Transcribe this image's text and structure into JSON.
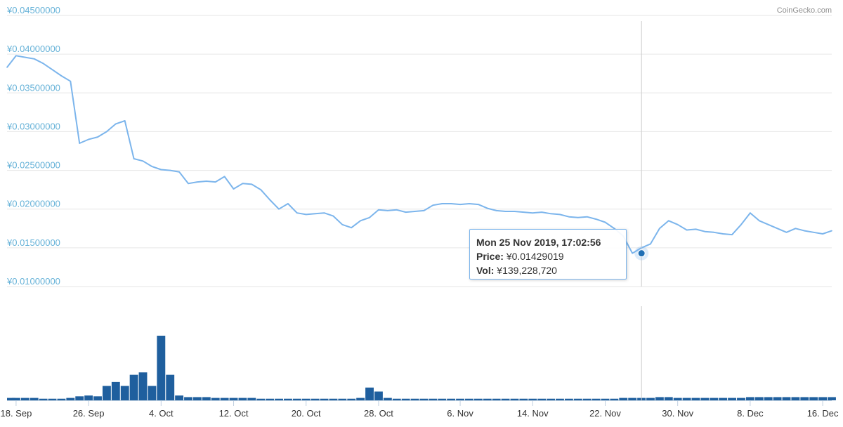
{
  "credit": "CoinGecko.com",
  "colors": {
    "price_line": "#7cb5ec",
    "volume_bars": "#1f5f9e",
    "y_tick_text": "#66b2d8",
    "x_tick_text": "#333333",
    "grid": "#e6e6e6",
    "crosshair": "#cccccc",
    "tooltip_border": "#7cb5ec",
    "marker": "#1f6fb5"
  },
  "tooltip": {
    "date": "Mon 25 Nov 2019, 17:02:56",
    "price_label": "Price:",
    "price_value": "¥0.01429019",
    "vol_label": "Vol:",
    "vol_value": "¥139,228,720"
  },
  "chart_data": {
    "type": "line",
    "title": "",
    "xlabel": "",
    "ylabel": "",
    "grid": true,
    "legend": "none",
    "ylim": [
      0.01,
      0.045
    ],
    "y_tick_labels": [
      "¥0.04500000",
      "¥0.04000000",
      "¥0.03500000",
      "¥0.03000000",
      "¥0.02500000",
      "¥0.02000000",
      "¥0.01500000",
      "¥0.01000000"
    ],
    "y_tick_values": [
      0.045,
      0.04,
      0.035,
      0.03,
      0.025,
      0.02,
      0.015,
      0.01
    ],
    "x_tick_labels": [
      "18. Sep",
      "26. Sep",
      "4. Oct",
      "12. Oct",
      "20. Oct",
      "28. Oct",
      "6. Nov",
      "14. Nov",
      "22. Nov",
      "30. Nov",
      "8. Dec",
      "16. Dec"
    ],
    "x_tick_dates": [
      "2019-09-18",
      "2019-09-26",
      "2019-10-04",
      "2019-10-12",
      "2019-10-20",
      "2019-10-28",
      "2019-11-06",
      "2019-11-14",
      "2019-11-22",
      "2019-11-30",
      "2019-12-08",
      "2019-12-16"
    ],
    "x_range": [
      "2019-09-17",
      "2019-12-17"
    ],
    "highlight": {
      "date": "2019-11-25",
      "price": 0.01429019
    },
    "price_series": {
      "dates": [
        "2019-09-17",
        "2019-09-18",
        "2019-09-19",
        "2019-09-20",
        "2019-09-21",
        "2019-09-22",
        "2019-09-23",
        "2019-09-24",
        "2019-09-25",
        "2019-09-26",
        "2019-09-27",
        "2019-09-28",
        "2019-09-29",
        "2019-09-30",
        "2019-10-01",
        "2019-10-02",
        "2019-10-03",
        "2019-10-04",
        "2019-10-05",
        "2019-10-06",
        "2019-10-07",
        "2019-10-08",
        "2019-10-09",
        "2019-10-10",
        "2019-10-11",
        "2019-10-12",
        "2019-10-13",
        "2019-10-14",
        "2019-10-15",
        "2019-10-16",
        "2019-10-17",
        "2019-10-18",
        "2019-10-19",
        "2019-10-20",
        "2019-10-21",
        "2019-10-22",
        "2019-10-23",
        "2019-10-24",
        "2019-10-25",
        "2019-10-26",
        "2019-10-27",
        "2019-10-28",
        "2019-10-29",
        "2019-10-30",
        "2019-10-31",
        "2019-11-01",
        "2019-11-02",
        "2019-11-03",
        "2019-11-04",
        "2019-11-05",
        "2019-11-06",
        "2019-11-07",
        "2019-11-08",
        "2019-11-09",
        "2019-11-10",
        "2019-11-11",
        "2019-11-12",
        "2019-11-13",
        "2019-11-14",
        "2019-11-15",
        "2019-11-16",
        "2019-11-17",
        "2019-11-18",
        "2019-11-19",
        "2019-11-20",
        "2019-11-21",
        "2019-11-22",
        "2019-11-23",
        "2019-11-24",
        "2019-11-25",
        "2019-11-26",
        "2019-11-27",
        "2019-11-28",
        "2019-11-29",
        "2019-11-30",
        "2019-12-01",
        "2019-12-02",
        "2019-12-03",
        "2019-12-04",
        "2019-12-05",
        "2019-12-06",
        "2019-12-07",
        "2019-12-08",
        "2019-12-09",
        "2019-12-10",
        "2019-12-11",
        "2019-12-12",
        "2019-12-13",
        "2019-12-14",
        "2019-12-15",
        "2019-12-16",
        "2019-12-17"
      ],
      "values": [
        0.0383,
        0.0398,
        0.0396,
        0.0394,
        0.0388,
        0.038,
        0.0372,
        0.0365,
        0.0285,
        0.029,
        0.0293,
        0.03,
        0.031,
        0.0314,
        0.0265,
        0.0262,
        0.0255,
        0.0251,
        0.025,
        0.0248,
        0.0233,
        0.0235,
        0.0236,
        0.0235,
        0.0242,
        0.0226,
        0.0233,
        0.0232,
        0.0225,
        0.0212,
        0.02,
        0.0207,
        0.0195,
        0.0193,
        0.0194,
        0.0195,
        0.0191,
        0.018,
        0.0176,
        0.0185,
        0.0189,
        0.0199,
        0.0198,
        0.0199,
        0.0196,
        0.0197,
        0.0198,
        0.0205,
        0.0207,
        0.0207,
        0.0206,
        0.0207,
        0.0206,
        0.0201,
        0.0198,
        0.0197,
        0.0197,
        0.0196,
        0.0195,
        0.0196,
        0.0194,
        0.0193,
        0.019,
        0.0189,
        0.019,
        0.0187,
        0.0183,
        0.0175,
        0.0165,
        0.0143,
        0.015,
        0.0155,
        0.0175,
        0.0185,
        0.018,
        0.0173,
        0.0174,
        0.0171,
        0.017,
        0.0168,
        0.0167,
        0.018,
        0.0195,
        0.0185,
        0.018,
        0.0175,
        0.017,
        0.0175,
        0.0172,
        0.017,
        0.0168,
        0.0172
      ]
    },
    "volume_series": {
      "unit": "¥",
      "dates": [
        "2019-09-17",
        "2019-09-18",
        "2019-09-19",
        "2019-09-20",
        "2019-09-21",
        "2019-09-22",
        "2019-09-23",
        "2019-09-24",
        "2019-09-25",
        "2019-09-26",
        "2019-09-27",
        "2019-09-28",
        "2019-09-29",
        "2019-09-30",
        "2019-10-01",
        "2019-10-02",
        "2019-10-03",
        "2019-10-04",
        "2019-10-05",
        "2019-10-06",
        "2019-10-07",
        "2019-10-08",
        "2019-10-09",
        "2019-10-10",
        "2019-10-11",
        "2019-10-12",
        "2019-10-13",
        "2019-10-14",
        "2019-10-15",
        "2019-10-16",
        "2019-10-17",
        "2019-10-18",
        "2019-10-19",
        "2019-10-20",
        "2019-10-21",
        "2019-10-22",
        "2019-10-23",
        "2019-10-24",
        "2019-10-25",
        "2019-10-26",
        "2019-10-27",
        "2019-10-28",
        "2019-10-29",
        "2019-10-30",
        "2019-10-31",
        "2019-11-01",
        "2019-11-02",
        "2019-11-03",
        "2019-11-04",
        "2019-11-05",
        "2019-11-06",
        "2019-11-07",
        "2019-11-08",
        "2019-11-09",
        "2019-11-10",
        "2019-11-11",
        "2019-11-12",
        "2019-11-13",
        "2019-11-14",
        "2019-11-15",
        "2019-11-16",
        "2019-11-17",
        "2019-11-18",
        "2019-11-19",
        "2019-11-20",
        "2019-11-21",
        "2019-11-22",
        "2019-11-23",
        "2019-11-24",
        "2019-11-25",
        "2019-11-26",
        "2019-11-27",
        "2019-11-28",
        "2019-11-29",
        "2019-11-30",
        "2019-12-01",
        "2019-12-02",
        "2019-12-03",
        "2019-12-04",
        "2019-12-05",
        "2019-12-06",
        "2019-12-07",
        "2019-12-08",
        "2019-12-09",
        "2019-12-10",
        "2019-12-11",
        "2019-12-12",
        "2019-12-13",
        "2019-12-14",
        "2019-12-15",
        "2019-12-16",
        "2019-12-17"
      ],
      "values": [
        0.3,
        0.3,
        0.3,
        0.3,
        0.2,
        0.2,
        0.2,
        0.3,
        0.5,
        0.6,
        0.5,
        1.8,
        2.3,
        1.8,
        3.2,
        3.5,
        1.8,
        8.1,
        3.2,
        0.6,
        0.4,
        0.4,
        0.4,
        0.3,
        0.3,
        0.3,
        0.3,
        0.3,
        0.2,
        0.2,
        0.2,
        0.2,
        0.2,
        0.2,
        0.2,
        0.2,
        0.2,
        0.2,
        0.2,
        0.3,
        1.6,
        1.1,
        0.3,
        0.2,
        0.2,
        0.2,
        0.2,
        0.2,
        0.2,
        0.2,
        0.2,
        0.2,
        0.2,
        0.2,
        0.2,
        0.2,
        0.2,
        0.2,
        0.2,
        0.2,
        0.2,
        0.2,
        0.2,
        0.2,
        0.2,
        0.2,
        0.2,
        0.2,
        0.3,
        0.3,
        0.3,
        0.3,
        0.4,
        0.4,
        0.3,
        0.3,
        0.3,
        0.3,
        0.3,
        0.3,
        0.3,
        0.3,
        0.4,
        0.4,
        0.4,
        0.4,
        0.4,
        0.4,
        0.4,
        0.4,
        0.4,
        0.4
      ]
    }
  }
}
